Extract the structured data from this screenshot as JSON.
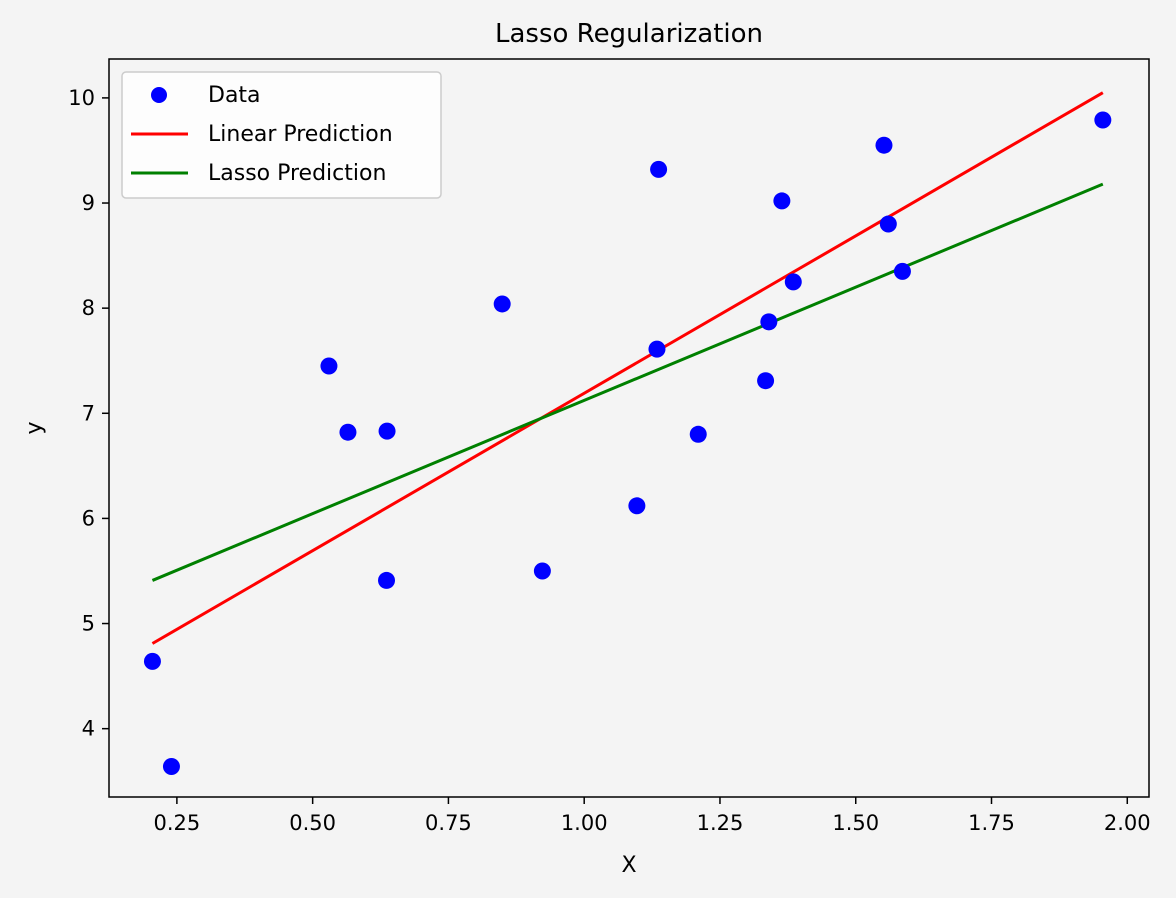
{
  "chart_data": {
    "type": "scatter",
    "title": "Lasso Regularization",
    "xlabel": "X",
    "ylabel": "y",
    "xlim": [
      0.125,
      2.04
    ],
    "ylim": [
      3.35,
      10.37
    ],
    "xticks": [
      0.25,
      0.5,
      0.75,
      1.0,
      1.25,
      1.5,
      1.75,
      2.0
    ],
    "xtick_labels": [
      "0.25",
      "0.50",
      "0.75",
      "1.00",
      "1.25",
      "1.50",
      "1.75",
      "2.00"
    ],
    "yticks": [
      4,
      5,
      6,
      7,
      8,
      9,
      10
    ],
    "ytick_labels": [
      "4",
      "5",
      "6",
      "7",
      "8",
      "9",
      "10"
    ],
    "grid": false,
    "legend_position": "top-left",
    "background_color": "#f4f4f4",
    "series": [
      {
        "name": "Data",
        "kind": "scatter",
        "color": "#0000ff",
        "x": [
          0.205,
          0.24,
          0.53,
          0.565,
          0.637,
          0.636,
          0.849,
          0.923,
          1.097,
          1.134,
          1.137,
          1.21,
          1.334,
          1.34,
          1.364,
          1.385,
          1.552,
          1.56,
          1.586,
          1.955
        ],
        "y": [
          4.64,
          3.64,
          7.45,
          6.82,
          6.83,
          5.41,
          8.04,
          5.5,
          6.12,
          7.61,
          9.32,
          6.8,
          7.31,
          7.87,
          9.02,
          8.25,
          9.55,
          8.8,
          8.35,
          9.79
        ]
      },
      {
        "name": "Linear Prediction",
        "kind": "line",
        "color": "#ff0000",
        "x": [
          0.205,
          1.955
        ],
        "y": [
          4.81,
          10.05
        ]
      },
      {
        "name": "Lasso Prediction",
        "kind": "line",
        "color": "#008000",
        "x": [
          0.205,
          1.955
        ],
        "y": [
          5.41,
          9.18
        ]
      }
    ]
  }
}
